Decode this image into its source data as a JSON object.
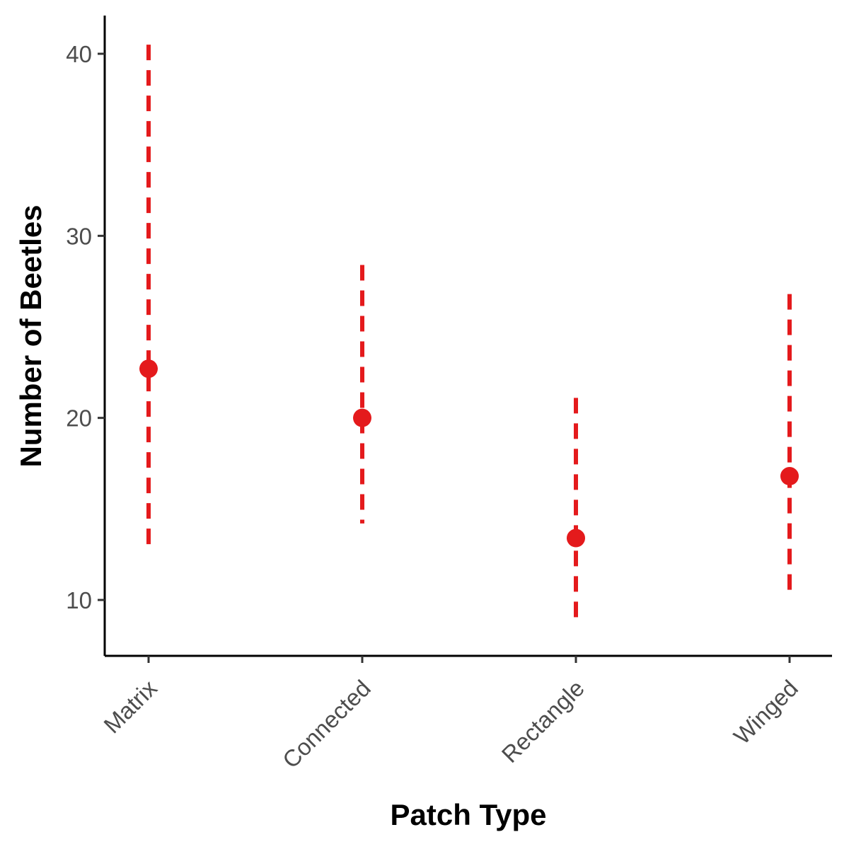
{
  "chart_data": {
    "type": "scatter",
    "title": "",
    "xlabel": "Patch Type",
    "ylabel": "Number of Beetles",
    "categories": [
      "Matrix",
      "Connected",
      "Rectangle",
      "Winged"
    ],
    "mean": [
      22.7,
      20.0,
      13.4,
      16.8
    ],
    "lower": [
      12.8,
      14.2,
      8.6,
      10.5
    ],
    "upper": [
      40.5,
      28.4,
      21.1,
      26.8
    ],
    "yticks": [
      10,
      20,
      30,
      40
    ],
    "ylim": [
      7,
      42
    ],
    "grid": false,
    "legend": "none",
    "color": "#e41a1c"
  }
}
